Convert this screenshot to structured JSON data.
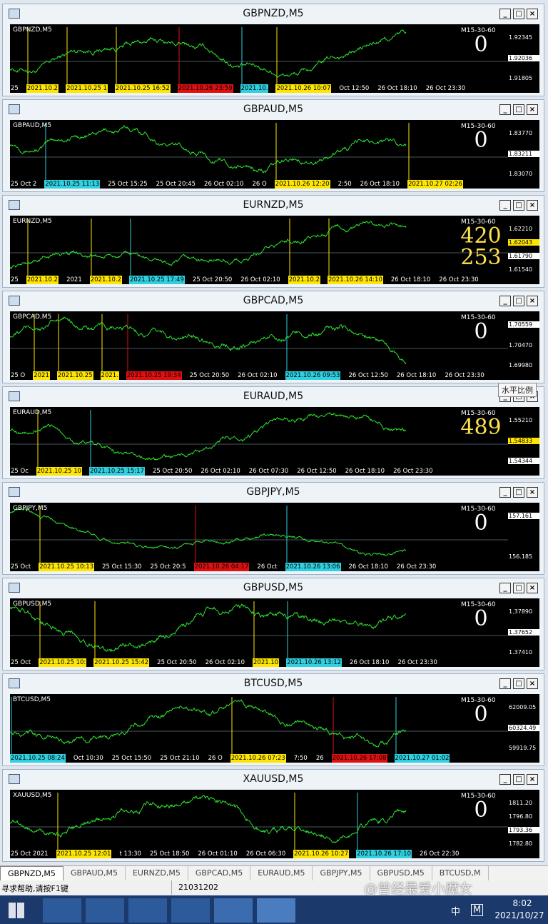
{
  "windows": [
    {
      "title": "GBPNZD,M5",
      "symbol": "GBPNZD,M5",
      "indicator": "M15-30-60",
      "counters": [
        "0"
      ],
      "counter_color": "white",
      "prices": [
        {
          "text": "1.92345"
        },
        {
          "text": "1.92036",
          "hl": "white"
        },
        {
          "text": "1.91805"
        }
      ],
      "times": [
        {
          "text": "25"
        },
        {
          "text": "2021.10.2",
          "hl": "yellow"
        },
        {
          "text": "2021.10.25 1",
          "hl": "yellow"
        },
        {
          "text": "2021.10.25 16:52",
          "hl": "yellow"
        },
        {
          "text": "2021.10.26 23:59",
          "hl": "red"
        },
        {
          "text": "2021.10.",
          "hl": "cyan"
        },
        {
          "text": "2021.10.26 10:07",
          "hl": "yellow"
        },
        {
          "text": "Oct 12:50"
        },
        {
          "text": "26 Oct 18:10"
        },
        {
          "text": "26 Oct 23:30"
        }
      ]
    },
    {
      "title": "GBPAUD,M5",
      "symbol": "GBPAUD,M5",
      "indicator": "M15-30-60",
      "counters": [
        "0"
      ],
      "counter_color": "white",
      "prices": [
        {
          "text": "1.83770"
        },
        {
          "text": "1.83211",
          "hl": "white"
        },
        {
          "text": "1.83070"
        }
      ],
      "times": [
        {
          "text": "25 Oct 2"
        },
        {
          "text": "2021.10.25 11:13",
          "hl": "cyan"
        },
        {
          "text": "25 Oct 15:25"
        },
        {
          "text": "25 Oct 20:45"
        },
        {
          "text": "26 Oct 02:10"
        },
        {
          "text": "26 O"
        },
        {
          "text": "2021.10.26 12:20",
          "hl": "yellow"
        },
        {
          "text": "2:50"
        },
        {
          "text": "26 Oct 18:10"
        },
        {
          "text": "2021.10.27 02:26",
          "hl": "yellow"
        }
      ]
    },
    {
      "title": "EURNZD,M5",
      "symbol": "EURNZD,M5",
      "indicator": "M15-30-60",
      "counters": [
        "420",
        "253"
      ],
      "counter_color": "#ffe14d",
      "prices": [
        {
          "text": "1.62210"
        },
        {
          "text": "1.62043",
          "hl": "yellow"
        },
        {
          "text": "1.61790",
          "hl": "white"
        },
        {
          "text": "1.61540"
        }
      ],
      "times": [
        {
          "text": "25"
        },
        {
          "text": "2021.10.2",
          "hl": "yellow"
        },
        {
          "text": "2021"
        },
        {
          "text": "2021.10.2",
          "hl": "yellow"
        },
        {
          "text": "2021.10.25 17:49",
          "hl": "cyan"
        },
        {
          "text": "25 Oct 20:50"
        },
        {
          "text": "26 Oct 02:10"
        },
        {
          "text": "2021.10.2",
          "hl": "yellow"
        },
        {
          "text": "2021.10.26 14:10",
          "hl": "yellow"
        },
        {
          "text": "26 Oct 18:10"
        },
        {
          "text": "26 Oct 23:30"
        }
      ]
    },
    {
      "title": "GBPCAD,M5",
      "symbol": "GBPCAD,M5",
      "indicator": "M15-30-60",
      "counters": [
        "0"
      ],
      "counter_color": "white",
      "prices": [
        {
          "text": "1.70559",
          "hl": "white"
        },
        {
          "text": "1.70470"
        },
        {
          "text": "1.69980"
        }
      ],
      "times": [
        {
          "text": "25 O"
        },
        {
          "text": "2021",
          "hl": "yellow"
        },
        {
          "text": "2021.10.25",
          "hl": "yellow"
        },
        {
          "text": "2021.",
          "hl": "yellow"
        },
        {
          "text": "2021.10.25 19:34",
          "hl": "red"
        },
        {
          "text": "25 Oct 20:50"
        },
        {
          "text": "26 Oct 02:10"
        },
        {
          "text": "2021.10.26 09:53",
          "hl": "cyan"
        },
        {
          "text": "26 Oct 12:50"
        },
        {
          "text": "26 Oct 18:10"
        },
        {
          "text": "26 Oct 23:30"
        }
      ]
    },
    {
      "title": "EURAUD,M5",
      "symbol": "EURAUD,M5",
      "indicator": "M15-30-60",
      "counters": [
        "489"
      ],
      "counter_color": "#ffe14d",
      "tooltip": "水平比例",
      "prices": [
        {
          "text": "1.55210"
        },
        {
          "text": "1.54833",
          "hl": "yellow"
        },
        {
          "text": "1.54344",
          "hl": "white"
        }
      ],
      "times": [
        {
          "text": "25 Oc"
        },
        {
          "text": "2021.10.25 10",
          "hl": "yellow"
        },
        {
          "text": "2021.10.25 15:17",
          "hl": "cyan"
        },
        {
          "text": "25 Oct 20:50"
        },
        {
          "text": "26 Oct 02:10"
        },
        {
          "text": "26 Oct 07:30"
        },
        {
          "text": "26 Oct 12:50"
        },
        {
          "text": "26 Oct 18:10"
        },
        {
          "text": "26 Oct 23:30"
        }
      ]
    },
    {
      "title": "GBPJPY,M5",
      "symbol": "GBPJPY,M5",
      "indicator": "M15-30-60",
      "counters": [
        "0"
      ],
      "counter_color": "white",
      "prices": [
        {
          "text": "157.161",
          "hl": "white"
        },
        {
          "text": "156.185"
        }
      ],
      "times": [
        {
          "text": "25 Oct"
        },
        {
          "text": "2021.10.25 10:13",
          "hl": "yellow"
        },
        {
          "text": "25 Oct 15:30"
        },
        {
          "text": "25 Oct 20:5"
        },
        {
          "text": "2021.10.26 04:17",
          "hl": "red"
        },
        {
          "text": "26 Oct"
        },
        {
          "text": "2021.10.26 13:06",
          "hl": "cyan"
        },
        {
          "text": "26 Oct 18:10"
        },
        {
          "text": "26 Oct 23:30"
        }
      ]
    },
    {
      "title": "GBPUSD,M5",
      "symbol": "GBPUSD,M5",
      "indicator": "M15-30-60",
      "counters": [
        "0"
      ],
      "counter_color": "white",
      "prices": [
        {
          "text": "1.37890"
        },
        {
          "text": "1.37652",
          "hl": "white"
        },
        {
          "text": "1.37410"
        }
      ],
      "times": [
        {
          "text": "25 Oct"
        },
        {
          "text": "2021.10.25 10:",
          "hl": "yellow"
        },
        {
          "text": "2021.10.25 15:42",
          "hl": "yellow"
        },
        {
          "text": "25 Oct 20:50"
        },
        {
          "text": "26 Oct 02:10"
        },
        {
          "text": "2021.10",
          "hl": "yellow"
        },
        {
          "text": "2021.10.26 13:12",
          "hl": "cyan"
        },
        {
          "text": "26 Oct 18:10"
        },
        {
          "text": "26 Oct 23:30"
        }
      ]
    },
    {
      "title": "BTCUSD,M5",
      "symbol": "BTCUSD,M5",
      "indicator": "M15-30-60",
      "counters": [
        "0"
      ],
      "counter_color": "white",
      "prices": [
        {
          "text": "62009.05"
        },
        {
          "text": "60324.49",
          "hl": "white"
        },
        {
          "text": "59919.75"
        }
      ],
      "times": [
        {
          "text": "2021.10.25 08:24",
          "hl": "cyan"
        },
        {
          "text": "Oct 10:30"
        },
        {
          "text": "25 Oct 15:50"
        },
        {
          "text": "25 Oct 21:10"
        },
        {
          "text": "26 O"
        },
        {
          "text": "2021.10.26 07:23",
          "hl": "yellow"
        },
        {
          "text": "7:50"
        },
        {
          "text": "26"
        },
        {
          "text": "2021.10.26 17:08",
          "hl": "red"
        },
        {
          "text": "2021.10.27 01:02",
          "hl": "cyan"
        }
      ]
    },
    {
      "title": "XAUUSD,M5",
      "symbol": "XAUUSD,M5",
      "indicator": "M15-30-60",
      "counters": [
        "0"
      ],
      "counter_color": "white",
      "prices": [
        {
          "text": "1811.20"
        },
        {
          "text": "1796.80"
        },
        {
          "text": "1793.36",
          "hl": "white"
        },
        {
          "text": "1782.80"
        }
      ],
      "times": [
        {
          "text": "25 Oct 2021"
        },
        {
          "text": "2021.10.25 12:01",
          "hl": "yellow"
        },
        {
          "text": "t 13:30"
        },
        {
          "text": "25 Oct 18:50"
        },
        {
          "text": "26 Oct 01:10"
        },
        {
          "text": "26 Oct 06:30"
        },
        {
          "text": "2021.10.26 10:27",
          "hl": "yellow"
        },
        {
          "text": "2021.10.26 17:10",
          "hl": "cyan"
        },
        {
          "text": "26 Oct 22:30"
        }
      ]
    }
  ],
  "tabs": [
    "GBPNZD,M5",
    "GBPAUD,M5",
    "EURNZD,M5",
    "GBPCAD,M5",
    "EURAUD,M5",
    "GBPJPY,M5",
    "GBPUSD,M5",
    "BTCUSD,M"
  ],
  "status": {
    "help": "寻求帮助,请按F1键",
    "code": "21031202"
  },
  "watermark": "@曾经最爱小魔女",
  "taskbar": {
    "ime": "中",
    "m": "M",
    "time": "8:02",
    "date": "2021/10/27"
  }
}
